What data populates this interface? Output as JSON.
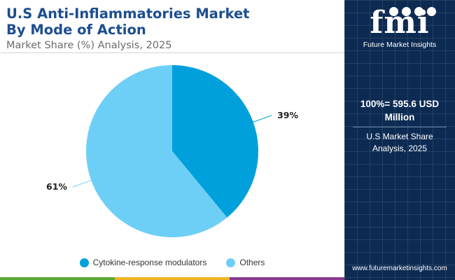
{
  "header": {
    "title_line1": "U.S Anti-Inflammatories Market",
    "title_line2": "By Mode of Action",
    "subtitle": "Market Share (%) Analysis, 2025"
  },
  "chart_data": {
    "type": "pie",
    "title": "U.S Anti-Inflammatories Market By Mode of Action",
    "subtitle": "Market Share (%) Analysis, 2025",
    "categories": [
      "Cytokine-response modulators",
      "Others"
    ],
    "values": [
      39,
      61
    ],
    "labels": [
      "39%",
      "61%"
    ],
    "colors": [
      "#00a0dc",
      "#6ecff6"
    ],
    "legend_position": "bottom-center",
    "start_angle": "top, clockwise"
  },
  "side_panel": {
    "logo_text": "fmi",
    "brand_name": "Future Market Insights",
    "total_line1": "100%= 595.6 USD",
    "total_line2": "Million",
    "caption_line1": "U.S Market Share",
    "caption_line2": "Analysis, 2025",
    "website": "www.futuremarketinsights.com",
    "background_color": "#0c2a52"
  },
  "footer": {
    "bar_colors": [
      "#5aa832",
      "#f0b323",
      "#8a3a8f"
    ]
  }
}
